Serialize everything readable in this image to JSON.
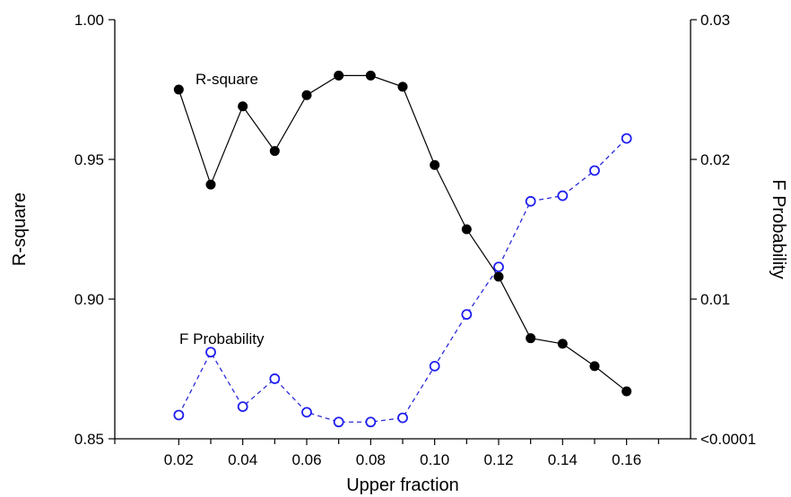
{
  "chart_data": {
    "type": "line",
    "xlabel": "Upper fraction",
    "ylabel_left": "R-square",
    "ylabel_right": "F Probability",
    "x_ticks": [
      "0.02",
      "0.04",
      "0.06",
      "0.08",
      "0.10",
      "0.12",
      "0.14",
      "0.16"
    ],
    "x_tick_values": [
      0.02,
      0.04,
      0.06,
      0.08,
      0.1,
      0.12,
      0.14,
      0.16
    ],
    "xlim": [
      0.0,
      0.18
    ],
    "y_left_ticks": [
      "0.85",
      "0.90",
      "0.95",
      "1.00"
    ],
    "y_left_tick_values": [
      0.85,
      0.9,
      0.95,
      1.0
    ],
    "y_left_lim": [
      0.85,
      1.0
    ],
    "y_right_ticks": [
      "<0.0001",
      "0.01",
      "0.02",
      "0.03"
    ],
    "y_right_tick_values": [
      0.0,
      0.01,
      0.02,
      0.03
    ],
    "y_right_lim": [
      0.0,
      0.03
    ],
    "grid": false,
    "x": [
      0.02,
      0.03,
      0.04,
      0.05,
      0.06,
      0.07,
      0.08,
      0.09,
      0.1,
      0.11,
      0.12,
      0.13,
      0.14,
      0.15,
      0.16
    ],
    "series": [
      {
        "name": "R-square",
        "axis": "left",
        "color": "#000000",
        "line_style": "solid",
        "marker": "filled-circle",
        "values": [
          0.975,
          0.941,
          0.969,
          0.953,
          0.973,
          0.98,
          0.98,
          0.976,
          0.948,
          0.925,
          0.908,
          0.886,
          0.884,
          0.876,
          0.867
        ]
      },
      {
        "name": "F Probability",
        "axis": "right",
        "color": "#1f1ff0",
        "line_style": "dashed",
        "marker": "open-circle",
        "values": [
          0.0017,
          0.0062,
          0.0023,
          0.0043,
          0.0019,
          0.0012,
          0.0012,
          0.0015,
          0.0052,
          0.0089,
          0.0123,
          0.017,
          0.0174,
          0.0192,
          0.0215
        ]
      }
    ]
  }
}
